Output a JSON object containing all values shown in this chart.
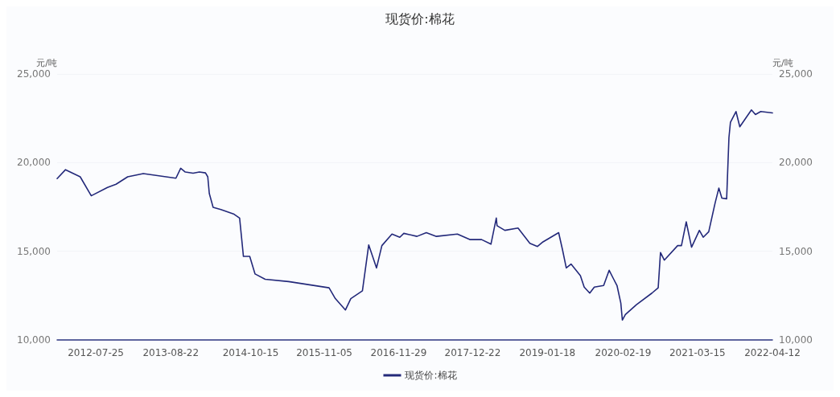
{
  "chart_data": {
    "type": "line",
    "title": "现货价:棉花",
    "ylabel": "元/吨",
    "y2label": "元/吨",
    "xlim": [
      "2012-01-04",
      "2022-04-12"
    ],
    "xticks": [
      "2012-07-25",
      "2013-08-22",
      "2014-10-15",
      "2015-11-05",
      "2016-11-29",
      "2017-12-22",
      "2019-01-18",
      "2020-02-19",
      "2021-03-15",
      "2022-04-12"
    ],
    "ylim": [
      10000,
      25000
    ],
    "yticks": [
      {
        "value": 10000,
        "label": "10,000"
      },
      {
        "value": 15000,
        "label": "15,000"
      },
      {
        "value": 20000,
        "label": "20,000"
      },
      {
        "value": 25000,
        "label": "25,000"
      }
    ],
    "y2lim": [
      10000,
      25000
    ],
    "y2ticks": [
      {
        "value": 10000,
        "label": "10,000"
      },
      {
        "value": 15000,
        "label": "15,000"
      },
      {
        "value": 20000,
        "label": "20,000"
      },
      {
        "value": 25000,
        "label": "25,000"
      }
    ],
    "grid": "y",
    "legend": "bottom",
    "marker": "none",
    "line_style": "solid",
    "x": [
      "2012-01-04",
      "2012-02-17",
      "2012-05-04",
      "2012-07-01",
      "2012-09-24",
      "2012-11-08",
      "2013-01-08",
      "2013-03-31",
      "2013-09-18",
      "2013-10-13",
      "2013-11-06",
      "2013-12-17",
      "2014-01-19",
      "2014-02-20",
      "2014-03-04",
      "2014-03-12",
      "2014-04-01",
      "2014-05-12",
      "2014-07-20",
      "2014-08-18",
      "2014-09-07",
      "2014-10-10",
      "2014-11-07",
      "2014-12-30",
      "2015-05-02",
      "2015-11-30",
      "2016-01-02",
      "2016-02-24",
      "2016-03-23",
      "2016-05-23",
      "2016-06-25",
      "2016-08-05",
      "2016-09-02",
      "2016-10-25",
      "2016-12-05",
      "2016-12-26",
      "2017-03-05",
      "2017-04-23",
      "2017-06-15",
      "2017-10-03",
      "2017-12-07",
      "2018-02-07",
      "2018-03-28",
      "2018-04-25",
      "2018-04-29",
      "2018-06-09",
      "2018-08-17",
      "2018-10-18",
      "2018-11-27",
      "2018-12-26",
      "2019-03-18",
      "2019-04-07",
      "2019-04-27",
      "2019-05-22",
      "2019-07-10",
      "2019-07-30",
      "2019-08-28",
      "2019-09-21",
      "2019-11-09",
      "2019-12-08",
      "2019-12-28",
      "2020-01-18",
      "2020-02-07",
      "2020-02-15",
      "2020-03-02",
      "2020-04-29",
      "2020-07-19",
      "2020-08-21",
      "2020-09-02",
      "2020-09-22",
      "2020-12-01",
      "2020-12-21",
      "2021-01-15",
      "2021-02-12",
      "2021-03-25",
      "2021-04-14",
      "2021-05-13",
      "2021-06-15",
      "2021-07-05",
      "2021-07-21",
      "2021-08-15",
      "2021-08-27",
      "2021-09-04",
      "2021-10-03",
      "2021-10-23",
      "2021-12-23",
      "2022-01-13",
      "2022-02-10",
      "2022-04-12"
    ],
    "series": [
      {
        "name": "现货价:棉花",
        "color": "#23297a",
        "values": [
          19100,
          19600,
          19200,
          18130,
          18600,
          18780,
          19200,
          19380,
          19120,
          19680,
          19470,
          19400,
          19470,
          19420,
          19200,
          18260,
          17480,
          17350,
          17090,
          16870,
          14710,
          14710,
          13720,
          13420,
          13290,
          12940,
          12330,
          11690,
          12330,
          12770,
          15360,
          14060,
          15320,
          15970,
          15790,
          16010,
          15840,
          16050,
          15840,
          15970,
          15660,
          15660,
          15400,
          16870,
          16440,
          16180,
          16310,
          15450,
          15270,
          15530,
          16050,
          15100,
          14060,
          14280,
          13630,
          12980,
          12640,
          12980,
          13070,
          13930,
          13500,
          13070,
          12080,
          11120,
          11430,
          11990,
          12640,
          12940,
          14930,
          14500,
          15320,
          15320,
          16660,
          15230,
          16180,
          15790,
          16100,
          17700,
          18560,
          18000,
          17960,
          21410,
          22280,
          22880,
          22020,
          22970,
          22710,
          22880,
          22800
        ]
      }
    ]
  }
}
